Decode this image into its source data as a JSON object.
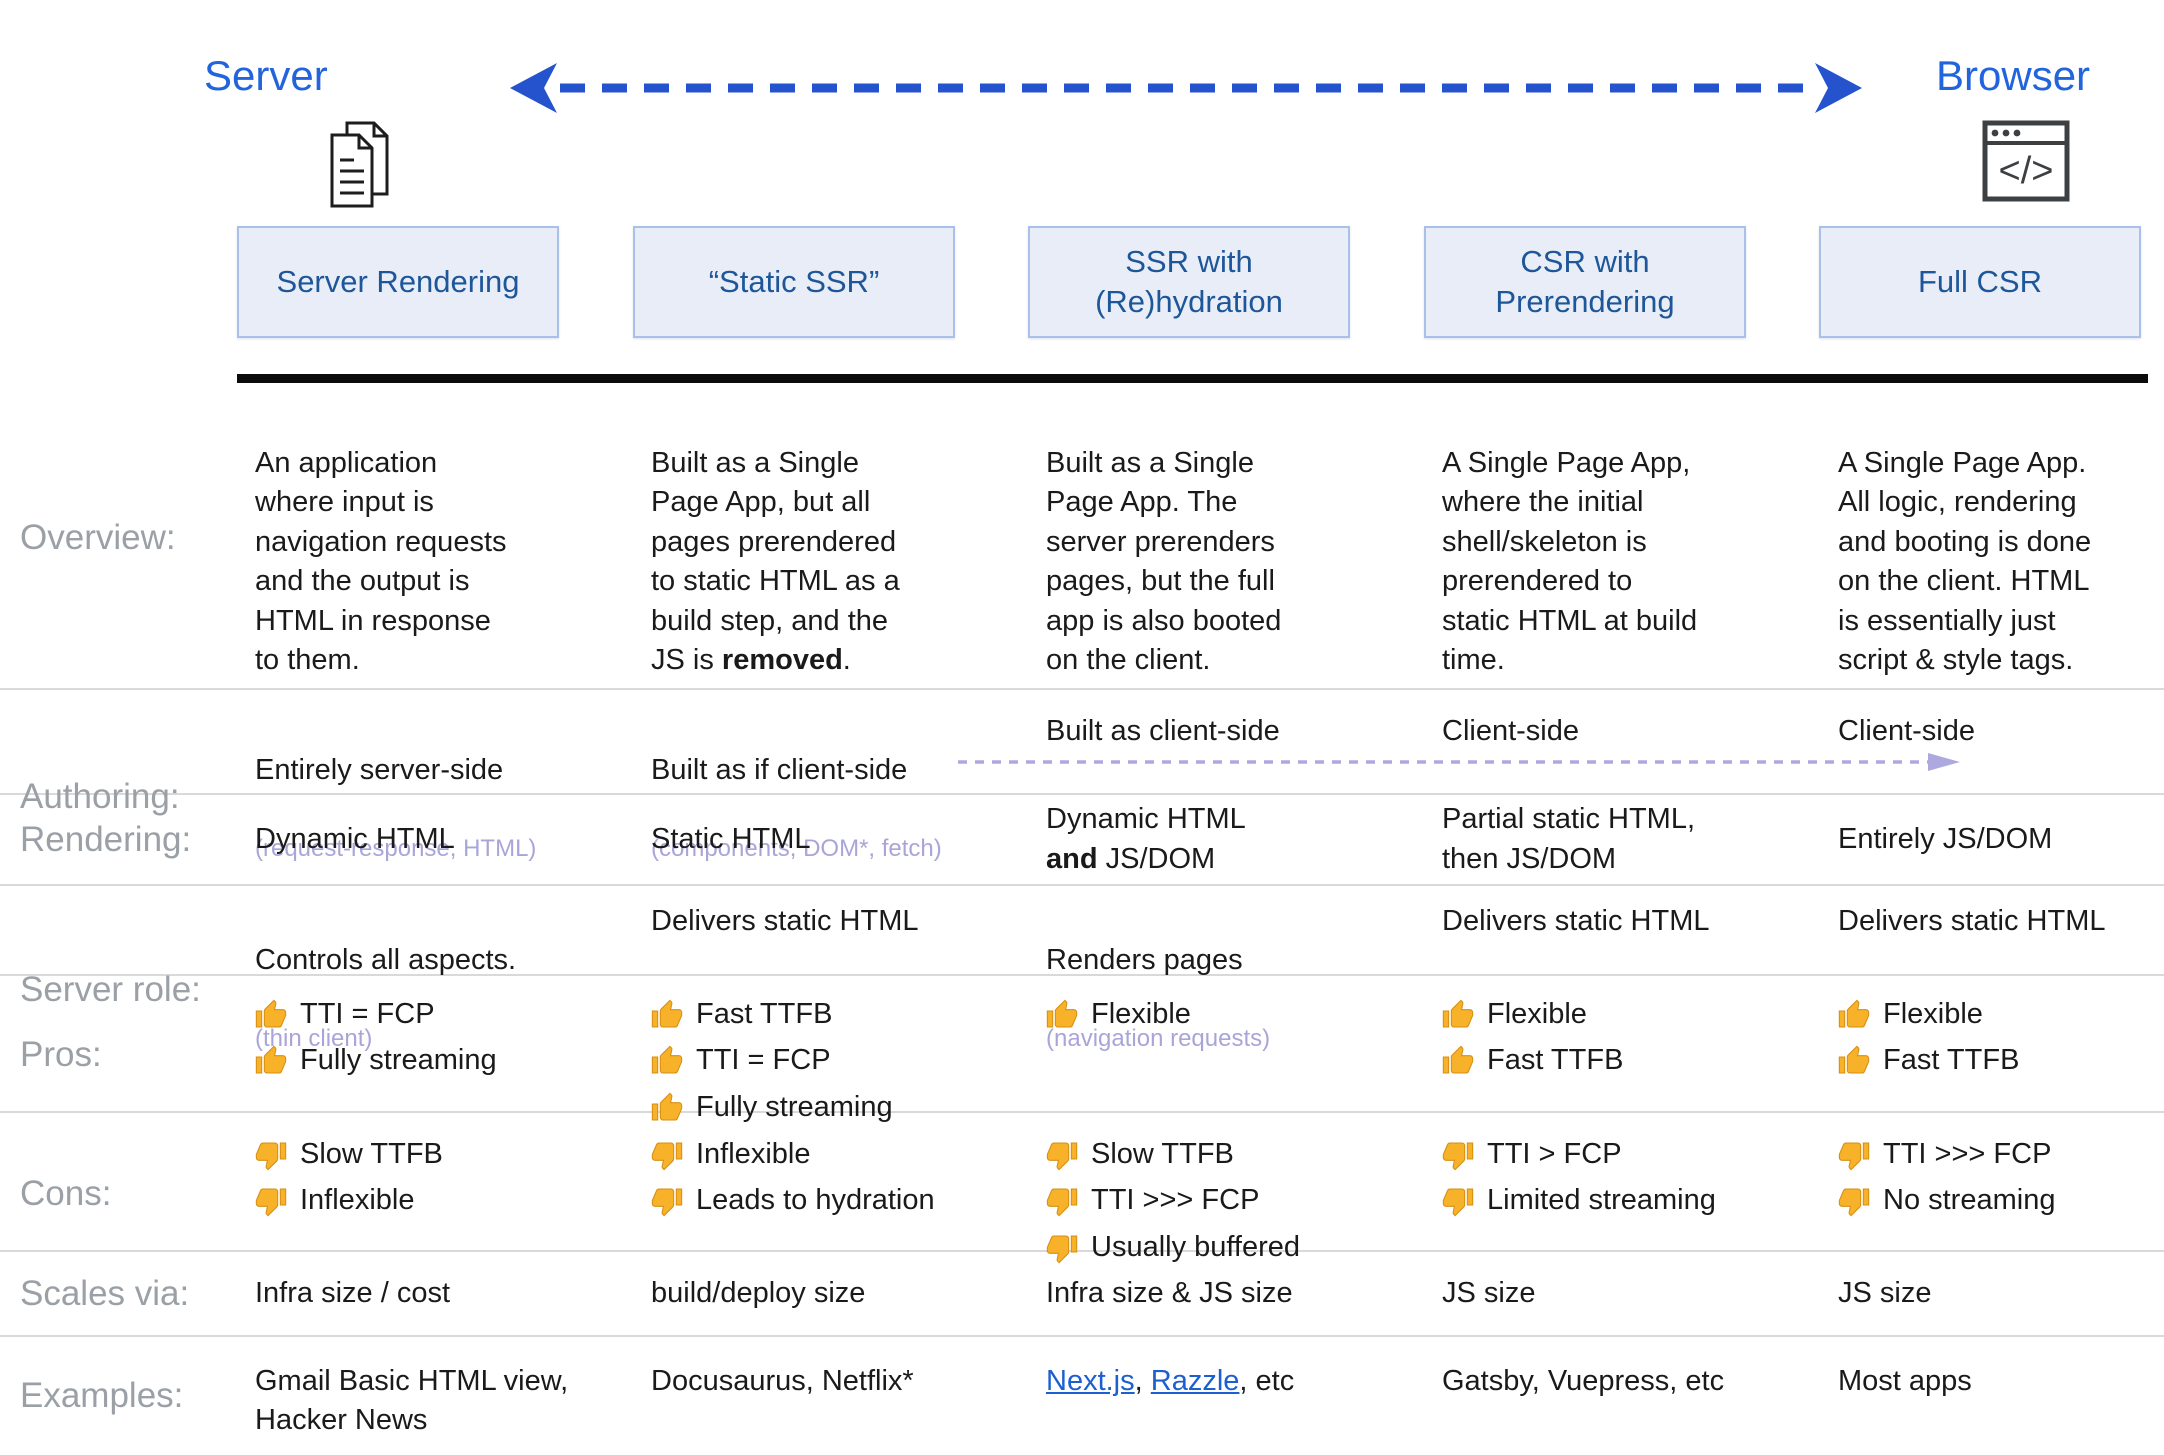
{
  "colors": {
    "accent_blue": "#2264dc",
    "arrow_blue": "#2453cd",
    "box_fill": "#e9edf7",
    "box_border": "#a9c0e8",
    "box_text": "#1d5699",
    "label_gray": "#9aa0a6",
    "subtext_purple": "#a9a5d9",
    "link_blue": "#1b5fd0",
    "thumb_yellow": "#f7b229"
  },
  "header": {
    "server_label": "Server",
    "browser_label": "Browser",
    "server_icon": "documents-icon",
    "browser_icon": "browser-window-icon",
    "columns": [
      "Server Rendering",
      "“Static SSR”",
      "SSR with\n(Re)hydration",
      "CSR with\nPrerendering",
      "Full CSR"
    ]
  },
  "table": {
    "overview": {
      "label": "Overview:",
      "cells": [
        "An application\nwhere input is\nnavigation requests\nand the output is\nHTML in response\nto them.",
        [
          {
            "text": "Built as a Single\nPage App, but all\npages prerendered\nto static HTML as a\nbuild step, and the\nJS is "
          },
          {
            "text": "removed",
            "bold": true
          },
          {
            "text": "."
          }
        ],
        "Built as a Single\nPage App. The\nserver prerenders\npages, but the full\napp is also booted\non the client.",
        "A Single Page App,\nwhere the initial\nshell/skeleton is\nprerendered to\nstatic HTML at build\ntime.",
        "A Single Page App.\nAll logic, rendering\nand booting is done\non the client. HTML\nis essentially just\nscript & style tags."
      ]
    },
    "authoring": {
      "label": "Authoring:",
      "cells": [
        "Entirely server-side",
        "Built as if client-side",
        "Built as client-side",
        "Client-side",
        "Client-side"
      ],
      "subtexts": {
        "col0": "(request-response, HTML)",
        "col1": "(components, DOM*, fetch)"
      }
    },
    "rendering": {
      "label": "Rendering:",
      "cells": [
        "Dynamic HTML",
        "Static HTML",
        [
          {
            "text": "Dynamic HTML\n"
          },
          {
            "text": "and",
            "bold": true
          },
          {
            "text": " JS/DOM"
          }
        ],
        "Partial static HTML,\nthen JS/DOM",
        "Entirely JS/DOM"
      ]
    },
    "server_role": {
      "label": "Server role:",
      "cells": [
        "Controls all aspects.",
        "Delivers static HTML",
        "Renders pages",
        "Delivers static HTML",
        "Delivers static HTML"
      ],
      "subtexts": {
        "col0": "(thin client)",
        "col2": "(navigation requests)"
      }
    },
    "pros": {
      "label": "Pros:",
      "cells": [
        [
          "TTI = FCP",
          "Fully streaming"
        ],
        [
          "Fast TTFB",
          "TTI = FCP",
          "Fully streaming"
        ],
        [
          "Flexible"
        ],
        [
          "Flexible",
          "Fast TTFB"
        ],
        [
          "Flexible",
          "Fast TTFB"
        ]
      ]
    },
    "cons": {
      "label": "Cons:",
      "cells": [
        [
          "Slow TTFB",
          "Inflexible"
        ],
        [
          "Inflexible",
          "Leads to hydration"
        ],
        [
          "Slow TTFB",
          "TTI >>> FCP",
          "Usually buffered"
        ],
        [
          "TTI > FCP",
          "Limited streaming"
        ],
        [
          "TTI >>> FCP",
          "No streaming"
        ]
      ]
    },
    "scales_via": {
      "label": "Scales via:",
      "cells": [
        "Infra size / cost",
        "build/deploy size",
        "Infra size & JS size",
        "JS size",
        "JS size"
      ]
    },
    "examples": {
      "label": "Examples:",
      "cells": [
        "Gmail Basic HTML view,\nHacker News",
        "Docusaurus, Netflix*",
        [
          {
            "text": "Next.js",
            "link": true,
            "name": "nextjs-link"
          },
          {
            "text": ", "
          },
          {
            "text": "Razzle",
            "link": true,
            "name": "razzle-link"
          },
          {
            "text": ", etc"
          }
        ],
        "Gatsby, Vuepress, etc",
        "Most apps"
      ]
    }
  }
}
